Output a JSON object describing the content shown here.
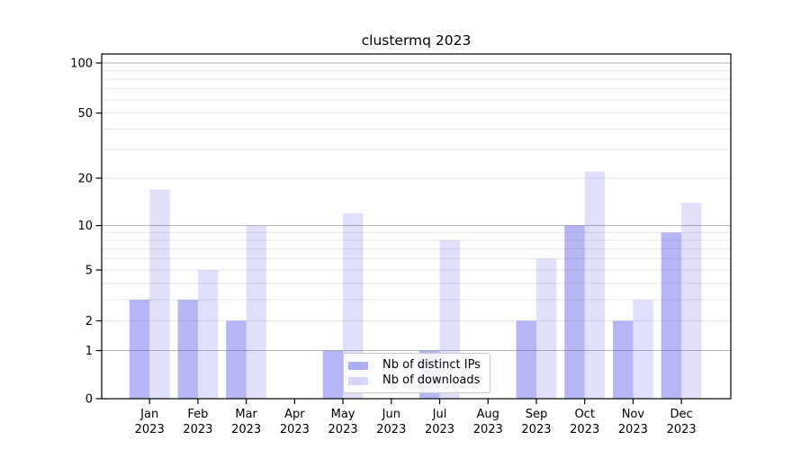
{
  "chart_data": {
    "type": "bar",
    "title": "clustermq 2023",
    "categories": [
      {
        "month": "Jan",
        "year": "2023"
      },
      {
        "month": "Feb",
        "year": "2023"
      },
      {
        "month": "Mar",
        "year": "2023"
      },
      {
        "month": "Apr",
        "year": "2023"
      },
      {
        "month": "May",
        "year": "2023"
      },
      {
        "month": "Jun",
        "year": "2023"
      },
      {
        "month": "Jul",
        "year": "2023"
      },
      {
        "month": "Aug",
        "year": "2023"
      },
      {
        "month": "Sep",
        "year": "2023"
      },
      {
        "month": "Oct",
        "year": "2023"
      },
      {
        "month": "Nov",
        "year": "2023"
      },
      {
        "month": "Dec",
        "year": "2023"
      }
    ],
    "series": [
      {
        "name": "Nb of distinct IPs",
        "color": "#4040e8",
        "opacity": 0.38,
        "values": [
          3,
          3,
          2,
          0,
          1,
          0,
          1,
          0,
          2,
          10,
          2,
          9
        ]
      },
      {
        "name": "Nb of downloads",
        "color": "#4040e8",
        "opacity": 0.16,
        "values": [
          17,
          5,
          10,
          0,
          12,
          0,
          8,
          0,
          6,
          22,
          3,
          14
        ]
      }
    ],
    "y_ticks": [
      0,
      1,
      2,
      5,
      10,
      20,
      50,
      100
    ],
    "major_gridline_values": [
      1,
      10,
      100
    ],
    "minor_gridline_values": [
      3,
      4,
      6,
      7,
      8,
      9,
      30,
      40,
      60,
      70,
      80,
      90
    ],
    "scale": "log10(1+value)",
    "ylim": [
      0,
      113
    ],
    "grid": "on",
    "legend_position": "lower-center-left",
    "colors": {
      "axis": "#000000",
      "text": "#000000",
      "major_grid": "#b3b3b3",
      "minor_grid": "#e8e8e8"
    }
  }
}
